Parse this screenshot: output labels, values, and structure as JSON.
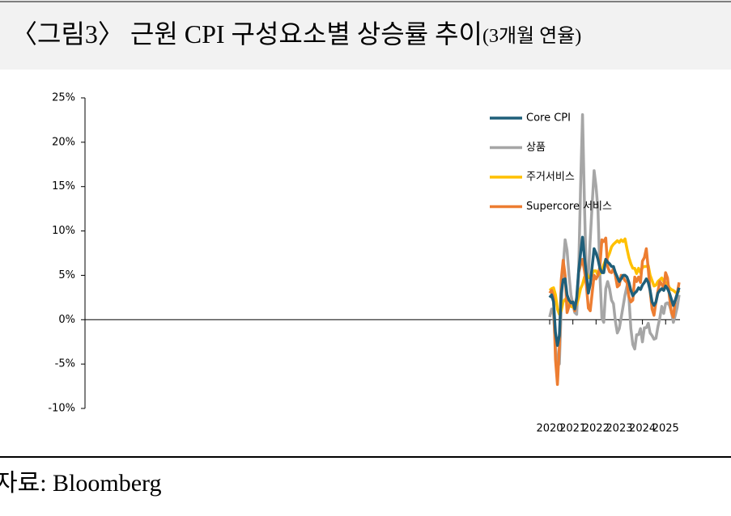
{
  "chart_data": {
    "type": "line",
    "title": "〈그림3〉 근원 CPI 구성요소별 상승률 추이",
    "subtitle": "(3개월 연율)",
    "source": "자료: Bloomberg",
    "x": [
      2020,
      2020.083,
      2020.167,
      2020.25,
      2020.333,
      2020.417,
      2020.5,
      2020.583,
      2020.667,
      2020.75,
      2020.833,
      2020.917,
      2021,
      2021.083,
      2021.167,
      2021.25,
      2021.333,
      2021.417,
      2021.5,
      2021.583,
      2021.667,
      2021.75,
      2021.833,
      2021.917,
      2022,
      2022.083,
      2022.167,
      2022.25,
      2022.333,
      2022.417,
      2022.5,
      2022.583,
      2022.667,
      2022.75,
      2022.833,
      2022.917,
      2023,
      2023.083,
      2023.167,
      2023.25,
      2023.333,
      2023.417,
      2023.5,
      2023.583,
      2023.667,
      2023.75,
      2023.833,
      2023.917,
      2024,
      2024.083,
      2024.167,
      2024.25,
      2024.333,
      2024.417,
      2024.5,
      2024.583,
      2024.667,
      2024.75,
      2024.833,
      2024.917,
      2025,
      2025.083,
      2025.167,
      2025.25,
      2025.333,
      2025.417,
      2025.5,
      2025.583
    ],
    "series": [
      {
        "name": "Core CPI",
        "color": "#1f5f7a",
        "values": [
          2.5,
          2.8,
          2.0,
          -1.5,
          -2.9,
          -1.8,
          3.0,
          4.5,
          4.6,
          2.8,
          2.2,
          1.9,
          2.0,
          1.2,
          2.5,
          5.5,
          7.5,
          9.3,
          7.0,
          5.0,
          3.0,
          4.0,
          6.0,
          8.0,
          7.5,
          6.8,
          5.8,
          5.3,
          5.3,
          6.8,
          6.5,
          6.3,
          6.0,
          6.0,
          5.3,
          4.8,
          4.3,
          4.6,
          5.0,
          5.0,
          4.8,
          4.2,
          3.3,
          2.7,
          3.0,
          3.2,
          3.6,
          3.4,
          3.9,
          4.2,
          4.6,
          4.2,
          3.3,
          2.0,
          1.6,
          2.0,
          3.0,
          3.3,
          3.5,
          3.3,
          3.8,
          3.5,
          3.0,
          2.3,
          1.6,
          2.2,
          2.9,
          3.6
        ]
      },
      {
        "name": "상품",
        "color": "#a6a6a6",
        "values": [
          0.3,
          1.2,
          0.6,
          -3.0,
          -5.2,
          -5.0,
          1.5,
          6.0,
          9.0,
          7.8,
          5.0,
          2.8,
          1.7,
          0.8,
          0.6,
          5.5,
          15.0,
          23.1,
          13.0,
          4.2,
          5.0,
          9.0,
          13.0,
          16.8,
          15.0,
          12.3,
          5.0,
          0.2,
          -0.3,
          3.5,
          4.3,
          3.5,
          2.2,
          1.8,
          -0.2,
          -1.5,
          -1.0,
          0.2,
          1.5,
          2.8,
          3.8,
          2.5,
          -1.0,
          -2.8,
          -3.3,
          -1.7,
          -1.7,
          -1.0,
          -2.5,
          -0.9,
          -0.9,
          -0.4,
          -1.5,
          -1.8,
          -2.2,
          -2.1,
          -0.8,
          0.2,
          1.5,
          0.7,
          1.8,
          1.9,
          1.6,
          0.9,
          -0.3,
          0.5,
          1.4,
          2.8
        ]
      },
      {
        "name": "주거서비스",
        "color": "#ffc000",
        "values": [
          3.3,
          3.5,
          3.6,
          2.8,
          1.2,
          0.6,
          1.0,
          2.0,
          2.3,
          2.1,
          1.8,
          1.5,
          1.4,
          1.4,
          1.7,
          2.5,
          3.5,
          4.0,
          4.8,
          5.2,
          4.8,
          4.7,
          5.2,
          5.5,
          5.5,
          5.0,
          5.2,
          5.5,
          6.2,
          6.8,
          7.0,
          7.5,
          8.2,
          8.5,
          8.7,
          8.9,
          8.7,
          9.0,
          8.8,
          9.1,
          8.0,
          7.0,
          6.3,
          5.8,
          5.8,
          5.2,
          5.8,
          5.3,
          5.9,
          6.0,
          6.0,
          6.1,
          5.0,
          4.4,
          3.8,
          3.9,
          4.3,
          4.5,
          4.7,
          4.3,
          4.2,
          4.0,
          3.6,
          3.4,
          3.3,
          3.1,
          3.0,
          3.3
        ]
      },
      {
        "name": "Supercore 서비스",
        "color": "#ed7d31",
        "values": [
          3.0,
          3.3,
          2.5,
          -4.5,
          -7.3,
          -3.0,
          4.5,
          6.7,
          5.0,
          0.8,
          1.5,
          2.0,
          2.0,
          1.0,
          2.2,
          5.3,
          6.2,
          6.8,
          5.5,
          3.8,
          1.3,
          1.0,
          3.0,
          5.0,
          4.6,
          5.0,
          6.0,
          9.0,
          8.8,
          9.2,
          6.0,
          5.4,
          5.3,
          5.8,
          5.0,
          3.7,
          3.9,
          5.0,
          4.8,
          4.4,
          4.2,
          2.6,
          2.0,
          2.2,
          4.8,
          4.3,
          4.8,
          4.2,
          6.6,
          7.0,
          8.0,
          5.7,
          3.2,
          1.2,
          0.5,
          2.0,
          3.2,
          4.3,
          4.0,
          3.5,
          5.3,
          4.7,
          2.6,
          0.8,
          0.3,
          2.2,
          3.0,
          4.2
        ]
      }
    ],
    "xlim": [
      1999.96,
      2025.62
    ],
    "xticks": [
      2020,
      2021,
      2022,
      2023,
      2024,
      2025
    ],
    "ylim": [
      -10,
      25
    ],
    "yticks": [
      {
        "value": -10,
        "label": "-10%"
      },
      {
        "value": -5,
        "label": "-5%"
      },
      {
        "value": 0,
        "label": "0%"
      },
      {
        "value": 5,
        "label": "5%"
      },
      {
        "value": 10,
        "label": "10%"
      },
      {
        "value": 15,
        "label": "15%"
      },
      {
        "value": 20,
        "label": "20%"
      },
      {
        "value": 25,
        "label": "25%"
      }
    ],
    "grid": false,
    "legend": "upper right"
  }
}
